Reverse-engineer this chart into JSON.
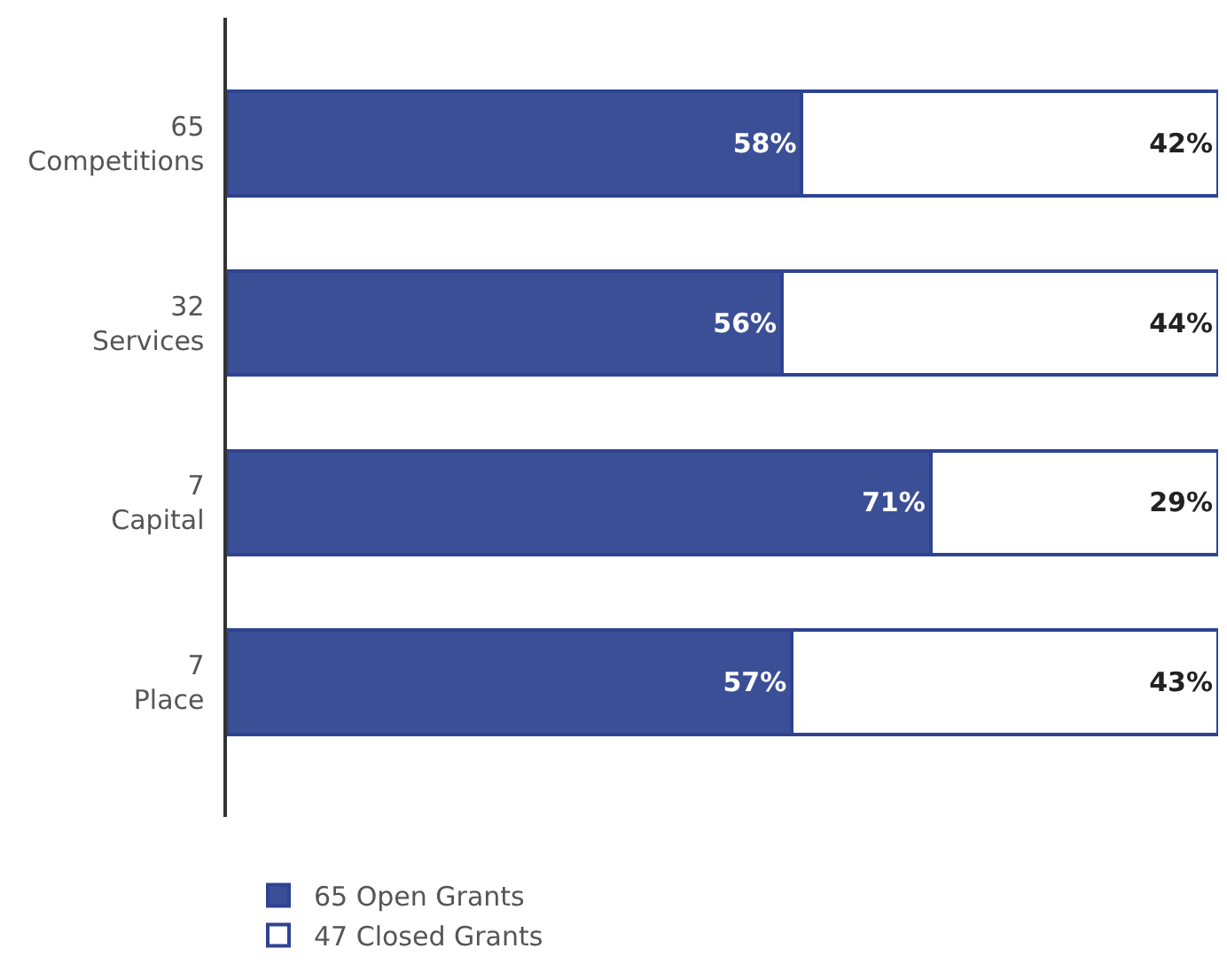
{
  "chart_data": {
    "type": "bar",
    "orientation": "horizontal",
    "stacked": true,
    "categories": [
      "65\nCompetitions",
      "32\nServices",
      "7\nCapital",
      "7\nPlace"
    ],
    "series": [
      {
        "name": "65 Open Grants",
        "color": "#3b4f97",
        "values": [
          58,
          56,
          71,
          57
        ],
        "value_labels": [
          "58%",
          "56%",
          "71%",
          "57%"
        ]
      },
      {
        "name": "47 Closed Grants",
        "color": "#ffffff",
        "values": [
          42,
          44,
          29,
          43
        ],
        "value_labels": [
          "42%",
          "44%",
          "29%",
          "43%"
        ]
      }
    ],
    "xlim": [
      0,
      100
    ],
    "tick_labels": "y",
    "legend": "bottom left"
  }
}
